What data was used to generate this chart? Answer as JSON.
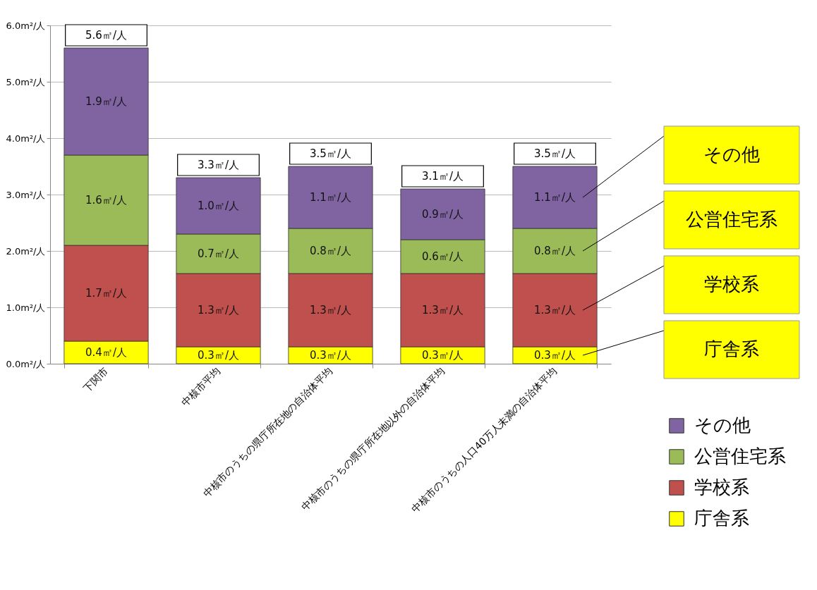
{
  "chart_data": {
    "type": "bar",
    "stacked": true,
    "categories": [
      "下関市",
      "中核市平均",
      "中核市のうちの県庁所在地の自治体平均",
      "中核市のうちの県庁所在地以外の自治体平均",
      "中核市のうちの人口40万人未満の自治体平均"
    ],
    "series": [
      {
        "name": "庁舎系",
        "color": "#ffff00",
        "values": [
          0.4,
          0.3,
          0.3,
          0.3,
          0.3
        ],
        "value_labels": [
          "0.4㎡/人",
          "0.3㎡/人",
          "0.3㎡/人",
          "0.3㎡/人",
          "0.3㎡/人"
        ]
      },
      {
        "name": "学校系",
        "color": "#c0504d",
        "values": [
          1.7,
          1.3,
          1.3,
          1.3,
          1.3
        ],
        "value_labels": [
          "1.7㎡/人",
          "1.3㎡/人",
          "1.3㎡/人",
          "1.3㎡/人",
          "1.3㎡/人"
        ]
      },
      {
        "name": "公営住宅系",
        "color": "#9bbb59",
        "values": [
          1.6,
          0.7,
          0.8,
          0.6,
          0.8
        ],
        "value_labels": [
          "1.6㎡/人",
          "0.7㎡/人",
          "0.8㎡/人",
          "0.6㎡/人",
          "0.8㎡/人"
        ]
      },
      {
        "name": "その他",
        "color": "#8064a2",
        "values": [
          1.9,
          1.0,
          1.1,
          0.9,
          1.1
        ],
        "value_labels": [
          "1.9㎡/人",
          "1.0㎡/人",
          "1.1㎡/人",
          "0.9㎡/人",
          "1.1㎡/人"
        ]
      }
    ],
    "totals": [
      "5.6㎡/人",
      "3.3㎡/人",
      "3.5㎡/人",
      "3.1㎡/人",
      "3.5㎡/人"
    ],
    "ylim": [
      0,
      6
    ],
    "yticks": [
      {
        "value": 0,
        "label": "0.0m²/人"
      },
      {
        "value": 1,
        "label": "1.0m²/人"
      },
      {
        "value": 2,
        "label": "2.0m²/人"
      },
      {
        "value": 3,
        "label": "3.0m²/人"
      },
      {
        "value": 4,
        "label": "4.0m²/人"
      },
      {
        "value": 5,
        "label": "5.0m²/人"
      },
      {
        "value": 6,
        "label": "6.0m²/人"
      }
    ],
    "annotations": [
      "その他",
      "公営住宅系",
      "学校系",
      "庁舎系"
    ],
    "grid": "y",
    "legend": "bottom right"
  }
}
